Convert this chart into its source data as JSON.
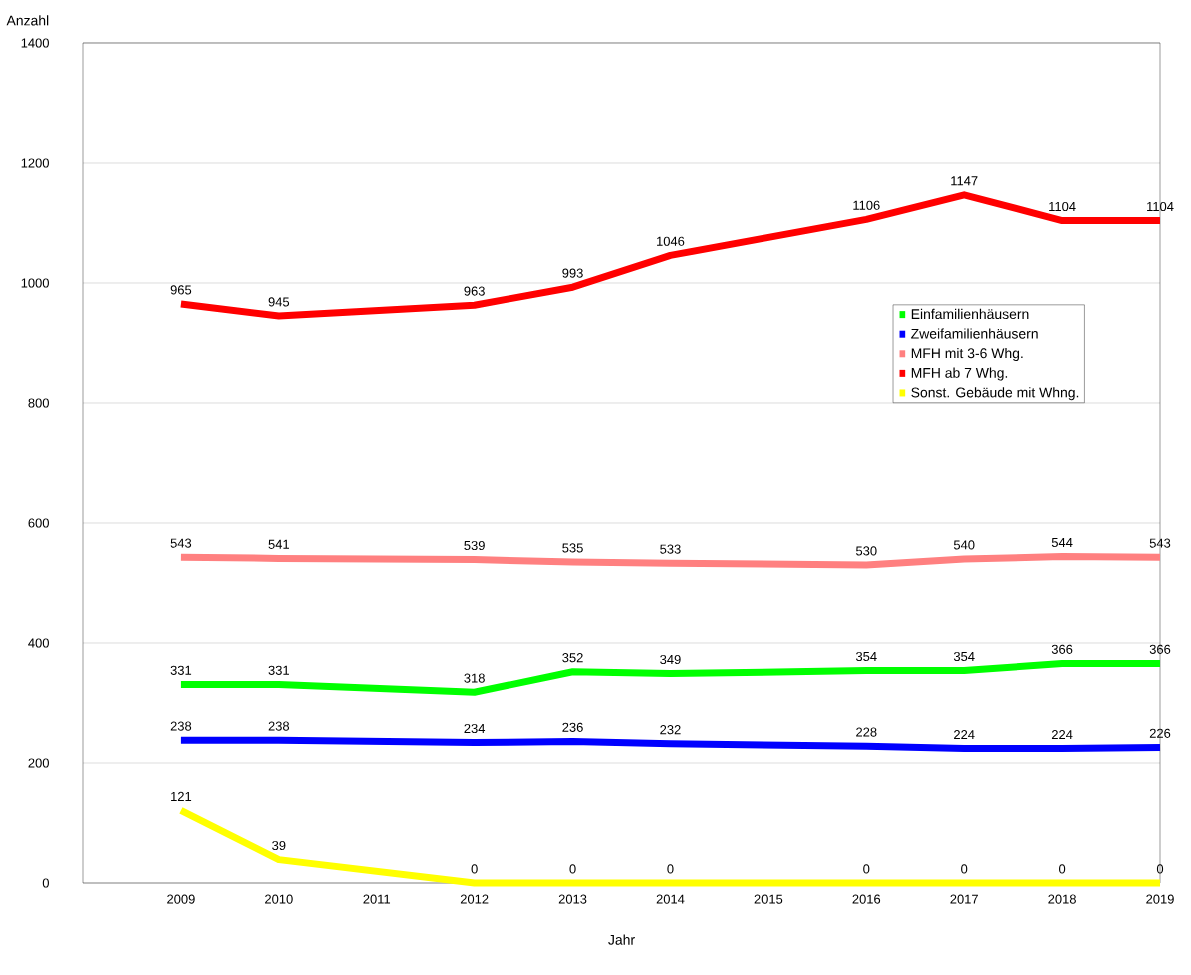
{
  "chart_data": {
    "type": "line",
    "xlabel": "Jahr",
    "ylabel": "Anzahl",
    "x": [
      2009,
      2010,
      2012,
      2013,
      2014,
      2016,
      2017,
      2018,
      2019
    ],
    "series": [
      {
        "name": "Einfamilienhäusern",
        "color": "#00ff00",
        "values": [
          331,
          331,
          318,
          352,
          349,
          354,
          354,
          366,
          366
        ]
      },
      {
        "name": "Zweifamilienhäusern",
        "color": "#0000ff",
        "values": [
          238,
          238,
          234,
          236,
          232,
          228,
          224,
          224,
          226
        ]
      },
      {
        "name": "MFH mit 3-6 Whg.",
        "color": "#ff8080",
        "values": [
          543,
          541,
          539,
          535,
          533,
          530,
          540,
          544,
          543
        ]
      },
      {
        "name": "MFH ab 7 Whg.",
        "color": "#ff0000",
        "values": [
          965,
          945,
          963,
          993,
          1046,
          1106,
          1147,
          1104,
          1104
        ]
      },
      {
        "name": "Sonst. Gebäude mit Whng.",
        "color": "#ffff00",
        "values": [
          121,
          39,
          0,
          0,
          0,
          0,
          0,
          0,
          0
        ]
      }
    ],
    "xlim": [
      2008,
      2019
    ],
    "ylim": [
      0,
      1400
    ],
    "xticks": [
      2009,
      2010,
      2011,
      2012,
      2013,
      2014,
      2015,
      2016,
      2017,
      2018,
      2019
    ],
    "yticks": [
      0,
      200,
      400,
      600,
      800,
      1000,
      1200,
      1400
    ],
    "grid": "y",
    "legend": "right",
    "data_labels": true,
    "line_style": "solid"
  }
}
